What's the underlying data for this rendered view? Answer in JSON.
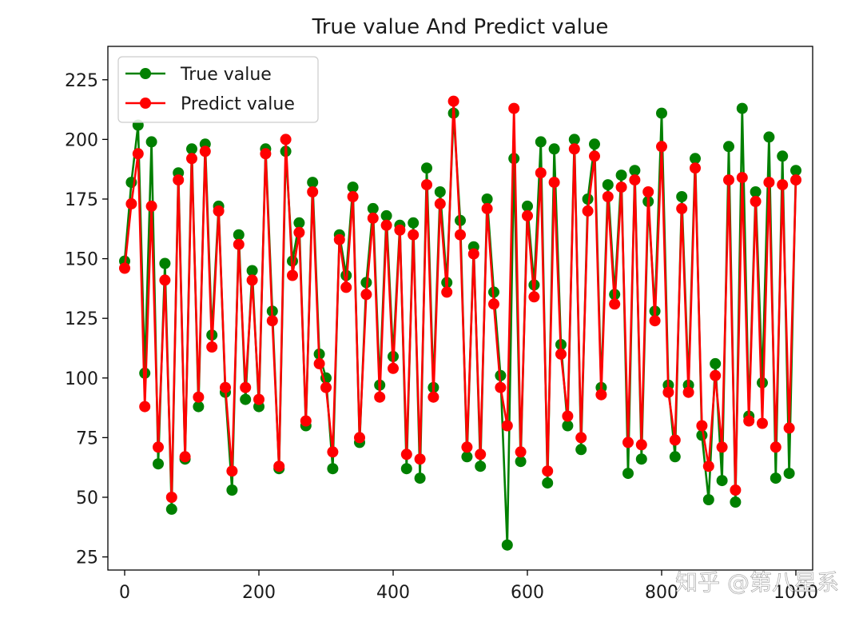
{
  "chart_data": {
    "type": "line",
    "title": "True value And Predict value",
    "xlabel": "",
    "ylabel": "",
    "xlim": [
      -25,
      1025
    ],
    "ylim": [
      19.5,
      239
    ],
    "xticks": [
      0,
      200,
      400,
      600,
      800,
      1000
    ],
    "yticks": [
      25,
      50,
      75,
      100,
      125,
      150,
      175,
      200,
      225
    ],
    "grid": false,
    "legend": "top-left",
    "sample_step": 10,
    "series": [
      {
        "name": "True value",
        "color": "#008000",
        "marker": "circle",
        "x": [
          0,
          10,
          20,
          30,
          40,
          50,
          60,
          70,
          80,
          90,
          100,
          110,
          120,
          130,
          140,
          150,
          160,
          170,
          180,
          190,
          200,
          210,
          220,
          230,
          240,
          250,
          260,
          270,
          280,
          290,
          300,
          310,
          320,
          330,
          340,
          350,
          360,
          370,
          380,
          390,
          400,
          410,
          420,
          430,
          440,
          450,
          460,
          470,
          480,
          490,
          500,
          510,
          520,
          530,
          540,
          550,
          560,
          570,
          580,
          590,
          600,
          610,
          620,
          630,
          640,
          650,
          660,
          670,
          680,
          690,
          700,
          710,
          720,
          730,
          740,
          750,
          760,
          770,
          780,
          790,
          800,
          810,
          820,
          830,
          840,
          850,
          860,
          870,
          880,
          890,
          900,
          910,
          920,
          930,
          940,
          950,
          960,
          970,
          980,
          990,
          1000
        ],
        "values": [
          149,
          182,
          206,
          102,
          199,
          64,
          148,
          45,
          186,
          66,
          196,
          88,
          198,
          118,
          172,
          94,
          53,
          160,
          91,
          145,
          88,
          196,
          128,
          62,
          195,
          149,
          165,
          80,
          182,
          110,
          100,
          62,
          160,
          143,
          180,
          73,
          140,
          171,
          97,
          168,
          109,
          164,
          62,
          165,
          58,
          188,
          96,
          178,
          140,
          211,
          166,
          67,
          155,
          63,
          175,
          136,
          101,
          30,
          192,
          65,
          172,
          139,
          199,
          56,
          196,
          114,
          80,
          200,
          70,
          175,
          198,
          96,
          181,
          135,
          185,
          60,
          187,
          66,
          174,
          128,
          211,
          97,
          67,
          176,
          97,
          192,
          76,
          49,
          106,
          57,
          197,
          48,
          213,
          84,
          178,
          98,
          201,
          58,
          193,
          60,
          187
        ]
      },
      {
        "name": "Predict value",
        "color": "#ff0000",
        "marker": "circle",
        "x": [
          0,
          10,
          20,
          30,
          40,
          50,
          60,
          70,
          80,
          90,
          100,
          110,
          120,
          130,
          140,
          150,
          160,
          170,
          180,
          190,
          200,
          210,
          220,
          230,
          240,
          250,
          260,
          270,
          280,
          290,
          300,
          310,
          320,
          330,
          340,
          350,
          360,
          370,
          380,
          390,
          400,
          410,
          420,
          430,
          440,
          450,
          460,
          470,
          480,
          490,
          500,
          510,
          520,
          530,
          540,
          550,
          560,
          570,
          580,
          590,
          600,
          610,
          620,
          630,
          640,
          650,
          660,
          670,
          680,
          690,
          700,
          710,
          720,
          730,
          740,
          750,
          760,
          770,
          780,
          790,
          800,
          810,
          820,
          830,
          840,
          850,
          860,
          870,
          880,
          890,
          900,
          910,
          920,
          930,
          940,
          950,
          960,
          970,
          980,
          990,
          1000
        ],
        "values": [
          146,
          173,
          194,
          88,
          172,
          71,
          141,
          50,
          183,
          67,
          192,
          92,
          195,
          113,
          170,
          96,
          61,
          156,
          96,
          141,
          91,
          194,
          124,
          63,
          200,
          143,
          161,
          82,
          178,
          106,
          96,
          69,
          158,
          138,
          176,
          75,
          135,
          167,
          92,
          164,
          104,
          162,
          68,
          160,
          66,
          181,
          92,
          173,
          136,
          216,
          160,
          71,
          152,
          68,
          171,
          131,
          96,
          80,
          213,
          69,
          168,
          134,
          186,
          61,
          182,
          110,
          84,
          196,
          75,
          170,
          193,
          93,
          176,
          131,
          180,
          73,
          183,
          72,
          178,
          124,
          197,
          94,
          74,
          171,
          94,
          188,
          80,
          63,
          101,
          71,
          183,
          53,
          184,
          82,
          174,
          81,
          182,
          71,
          181,
          79,
          183
        ]
      }
    ]
  },
  "watermark": "知乎 @第八星系"
}
